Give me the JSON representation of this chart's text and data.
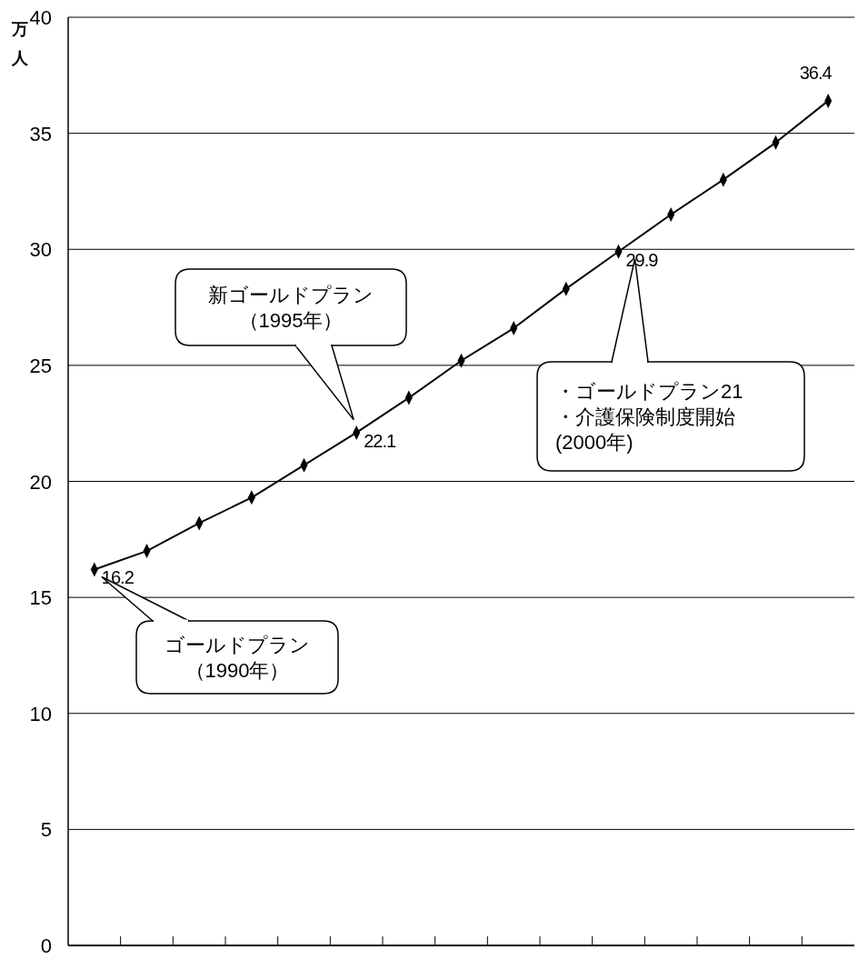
{
  "chart_data": {
    "type": "line",
    "ylabel": "万人",
    "categories": [
      null,
      null,
      null,
      null,
      null,
      null,
      null,
      null,
      null,
      null,
      null,
      null,
      null,
      null,
      null
    ],
    "series": [
      {
        "color": "#000000",
        "values": [
          16.2,
          17.0,
          18.2,
          19.3,
          20.7,
          22.1,
          23.6,
          25.2,
          26.6,
          28.3,
          29.9,
          31.5,
          33.0,
          34.6,
          36.4
        ],
        "value_labels": [
          "16.2",
          null,
          null,
          null,
          null,
          "22.1",
          null,
          null,
          null,
          null,
          "29.9",
          null,
          null,
          null,
          "36.4"
        ]
      }
    ],
    "ylim": [
      0,
      40
    ],
    "yticks": [
      0,
      5,
      10,
      15,
      20,
      25,
      30,
      35,
      40
    ],
    "grid": "y",
    "marker": "diamond",
    "line_style": "solid",
    "annotations": [
      "新ゴールドプラン（1995年）",
      "・ゴールドプラン21・介護保険制度開始(2000年)",
      "ゴールドプラン（1990年）"
    ]
  }
}
